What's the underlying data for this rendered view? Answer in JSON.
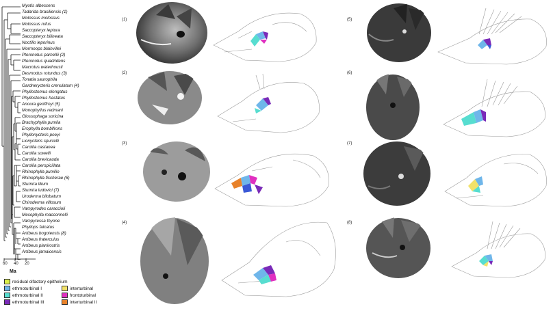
{
  "tree": {
    "species": [
      "Myotis albescens",
      "Tadarida brasiliensis (1)",
      "Molossus molossus",
      "Molossus rufus",
      "Saccopteryx leptura",
      "Saccopteryx bilineata",
      "Noctilio leporinus",
      "Mormoops blainvillei",
      "Pteronotus parnellii (2)",
      "Pteronotus quadridens",
      "Macrotus waterhousii",
      "Desmodus rotundus (3)",
      "Tonatia saurophila",
      "Gardnerycteris crenulatum (4)",
      "Phyllostomus elongatus",
      "Phyllostomus hastatus",
      "Anoura geoffroyi (5)",
      "Monophyllus redmani",
      "Glossophaga soricina",
      "Brachyphylla pumila",
      "Erophylla bombifrons",
      "Phyllonycteris poeyi",
      "Lionycteris spurrelli",
      "Carollia castanea",
      "Carollia sowelli",
      "Carollia brevicauda",
      "Carollia perspicillata",
      "Rhinophylla pumilio",
      "Rhinophylla fischerae (6)",
      "Sturnira lilium",
      "Sturnira ludovici (7)",
      "Uroderma bilobatum",
      "Chiroderma villosum",
      "Vampyrodes caraccioli",
      "Mesophylla macconnelli",
      "Vampyressa thyone",
      "Phyllops falcatus",
      "Artibeus bogotensis (8)",
      "Artibeus fraterculus",
      "Artibeus planirostris",
      "Artibeus jamaicensis"
    ],
    "scale_ticks": [
      "60",
      "40",
      "20"
    ],
    "scale_unit": "Ma"
  },
  "legend": [
    {
      "label": "residual olfactory epithelium",
      "color": "#dcf04a"
    },
    {
      "label": "ethmoturbinal I",
      "color": "#6fb6ea"
    },
    {
      "label": "interturbinal",
      "color": "#f2e26a"
    },
    {
      "label": "ethmoturbinal II",
      "color": "#57ddd0"
    },
    {
      "label": "frontoturbinal",
      "color": "#e030c0"
    },
    {
      "label": "ethmoturbinal III",
      "color": "#7a2ab8"
    },
    {
      "label": "interturbinal II",
      "color": "#e8822a"
    }
  ],
  "panels": [
    {
      "num": "(1)"
    },
    {
      "num": "(2)"
    },
    {
      "num": "(3)"
    },
    {
      "num": "(4)"
    },
    {
      "num": "(5)"
    },
    {
      "num": "(6)"
    },
    {
      "num": "(7)"
    },
    {
      "num": "(8)"
    }
  ]
}
